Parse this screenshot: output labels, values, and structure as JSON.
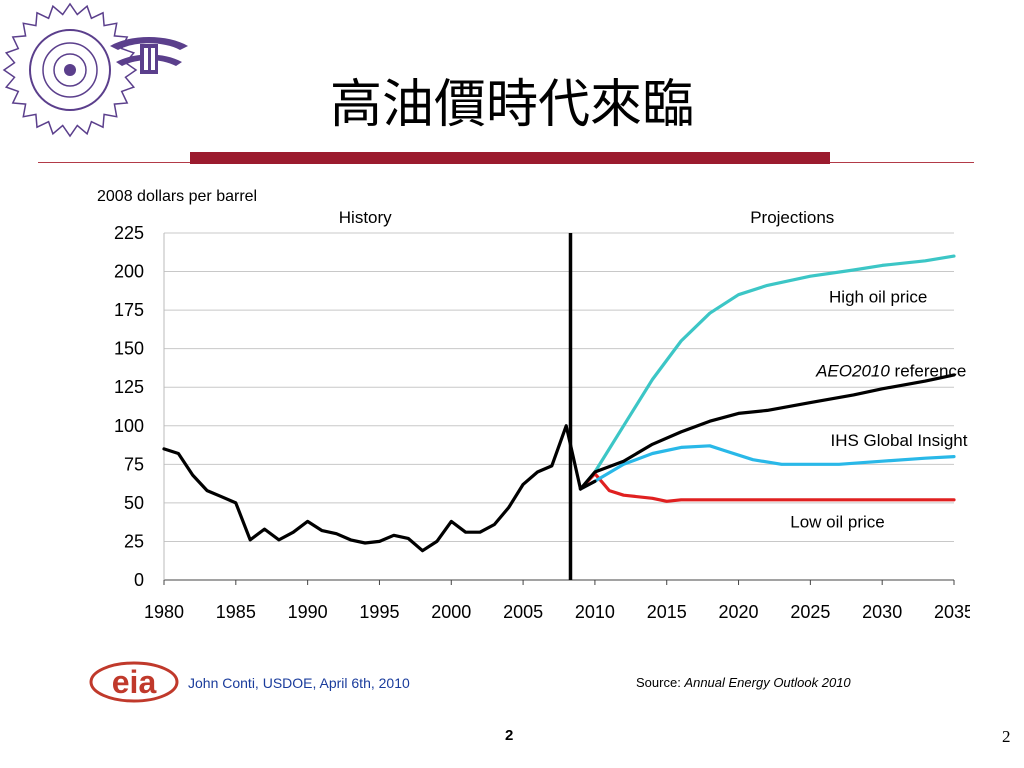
{
  "slide": {
    "title": "高油價時代來臨",
    "author_line": "John Conti, USDOE, April 6th, 2010",
    "source_prefix": "Source: ",
    "source_italic": "Annual Energy Outlook 2010",
    "page_center": "2",
    "page_right": "2",
    "eia_logo_text": "eia",
    "colors": {
      "accent": "#9b1b2e",
      "logo": "#5b3f8c",
      "author": "#1a3c9c",
      "eia": "#c0392b"
    }
  },
  "chart_data": {
    "type": "line",
    "ylabel": "2008 dollars per barrel",
    "region_labels": [
      "History",
      "Projections"
    ],
    "divider_x": 2008.3,
    "xlim": [
      1980,
      2035
    ],
    "ylim": [
      0,
      225
    ],
    "xticks": [
      "1980",
      "1985",
      "1990",
      "1995",
      "2000",
      "2005",
      "2010",
      "2015",
      "2020",
      "2025",
      "2030",
      "2035"
    ],
    "yticks": [
      "0",
      "25",
      "50",
      "75",
      "100",
      "125",
      "150",
      "175",
      "200",
      "225"
    ],
    "grid": true,
    "series": [
      {
        "name": "History",
        "color": "#000000",
        "x": [
          1980,
          1981,
          1982,
          1983,
          1984,
          1985,
          1986,
          1987,
          1988,
          1989,
          1990,
          1991,
          1992,
          1993,
          1994,
          1995,
          1996,
          1997,
          1998,
          1999,
          2000,
          2001,
          2002,
          2003,
          2004,
          2005,
          2006,
          2007,
          2008,
          2009,
          2010
        ],
        "y": [
          85,
          82,
          68,
          58,
          54,
          50,
          26,
          33,
          26,
          31,
          38,
          32,
          30,
          26,
          24,
          25,
          29,
          27,
          19,
          25,
          38,
          31,
          31,
          36,
          47,
          62,
          70,
          74,
          100,
          59,
          64
        ]
      },
      {
        "name": "High oil price",
        "color": "#3cc6c6",
        "x": [
          2009,
          2010,
          2012,
          2014,
          2016,
          2018,
          2020,
          2022,
          2025,
          2028,
          2030,
          2033,
          2035
        ],
        "y": [
          59,
          70,
          100,
          130,
          155,
          173,
          185,
          191,
          197,
          201,
          204,
          207,
          210
        ]
      },
      {
        "name": "AEO2010 reference",
        "color": "#000000",
        "x": [
          2009,
          2010,
          2012,
          2014,
          2016,
          2018,
          2020,
          2022,
          2025,
          2028,
          2030,
          2033,
          2035
        ],
        "y": [
          59,
          70,
          77,
          88,
          96,
          103,
          108,
          110,
          115,
          120,
          124,
          129,
          133
        ]
      },
      {
        "name": "IHS Global Insight",
        "color": "#29b8e8",
        "x": [
          2009,
          2010,
          2012,
          2014,
          2016,
          2018,
          2019,
          2021,
          2023,
          2025,
          2027,
          2030,
          2033,
          2035
        ],
        "y": [
          59,
          64,
          75,
          82,
          86,
          87,
          84,
          78,
          75,
          75,
          75,
          77,
          79,
          80
        ]
      },
      {
        "name": "Low oil price",
        "color": "#e02020",
        "x": [
          2009,
          2010,
          2011,
          2012,
          2014,
          2015,
          2016,
          2020,
          2025,
          2030,
          2035
        ],
        "y": [
          59,
          69,
          58,
          55,
          53,
          51,
          52,
          52,
          52,
          52,
          52
        ]
      }
    ],
    "annotations": [
      {
        "text": "High oil price",
        "x": 2026.3,
        "y": 180
      },
      {
        "text_italic": "AEO2010",
        "text": " reference",
        "x": 2025.4,
        "y": 132
      },
      {
        "text": "IHS Global Insight",
        "x": 2026.4,
        "y": 87
      },
      {
        "text": "Low oil price",
        "x": 2023.6,
        "y": 34
      }
    ]
  }
}
